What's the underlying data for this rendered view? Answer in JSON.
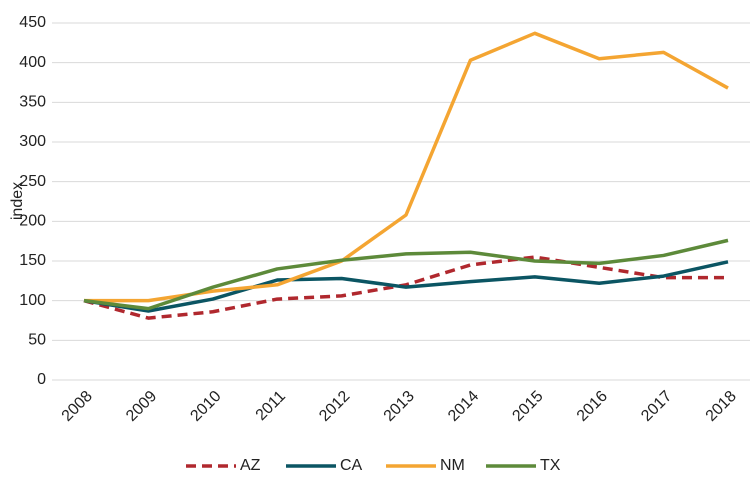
{
  "chart_data": {
    "type": "line",
    "y_label": "index",
    "categories": [
      "2008",
      "2009",
      "2010",
      "2011",
      "2012",
      "2013",
      "2014",
      "2015",
      "2016",
      "2017",
      "2018"
    ],
    "series": [
      {
        "name": "AZ",
        "color": "#b0282e",
        "dashed": true,
        "values": [
          100,
          78,
          86,
          102,
          106,
          120,
          145,
          155,
          142,
          129,
          129
        ]
      },
      {
        "name": "CA",
        "color": "#0b5563",
        "dashed": false,
        "values": [
          100,
          87,
          102,
          126,
          128,
          117,
          124,
          130,
          122,
          131,
          149
        ]
      },
      {
        "name": "NM",
        "color": "#f4a532",
        "dashed": false,
        "values": [
          100,
          100,
          112,
          120,
          150,
          208,
          403,
          437,
          405,
          413,
          368
        ]
      },
      {
        "name": "TX",
        "color": "#5d8a3a",
        "dashed": false,
        "values": [
          100,
          90,
          117,
          140,
          151,
          159,
          161,
          150,
          147,
          157,
          176
        ]
      }
    ],
    "ylim": [
      0,
      450
    ],
    "yticks": [
      0,
      50,
      100,
      150,
      200,
      250,
      300,
      350,
      400,
      450
    ],
    "grid": true,
    "legend": "bottom"
  }
}
